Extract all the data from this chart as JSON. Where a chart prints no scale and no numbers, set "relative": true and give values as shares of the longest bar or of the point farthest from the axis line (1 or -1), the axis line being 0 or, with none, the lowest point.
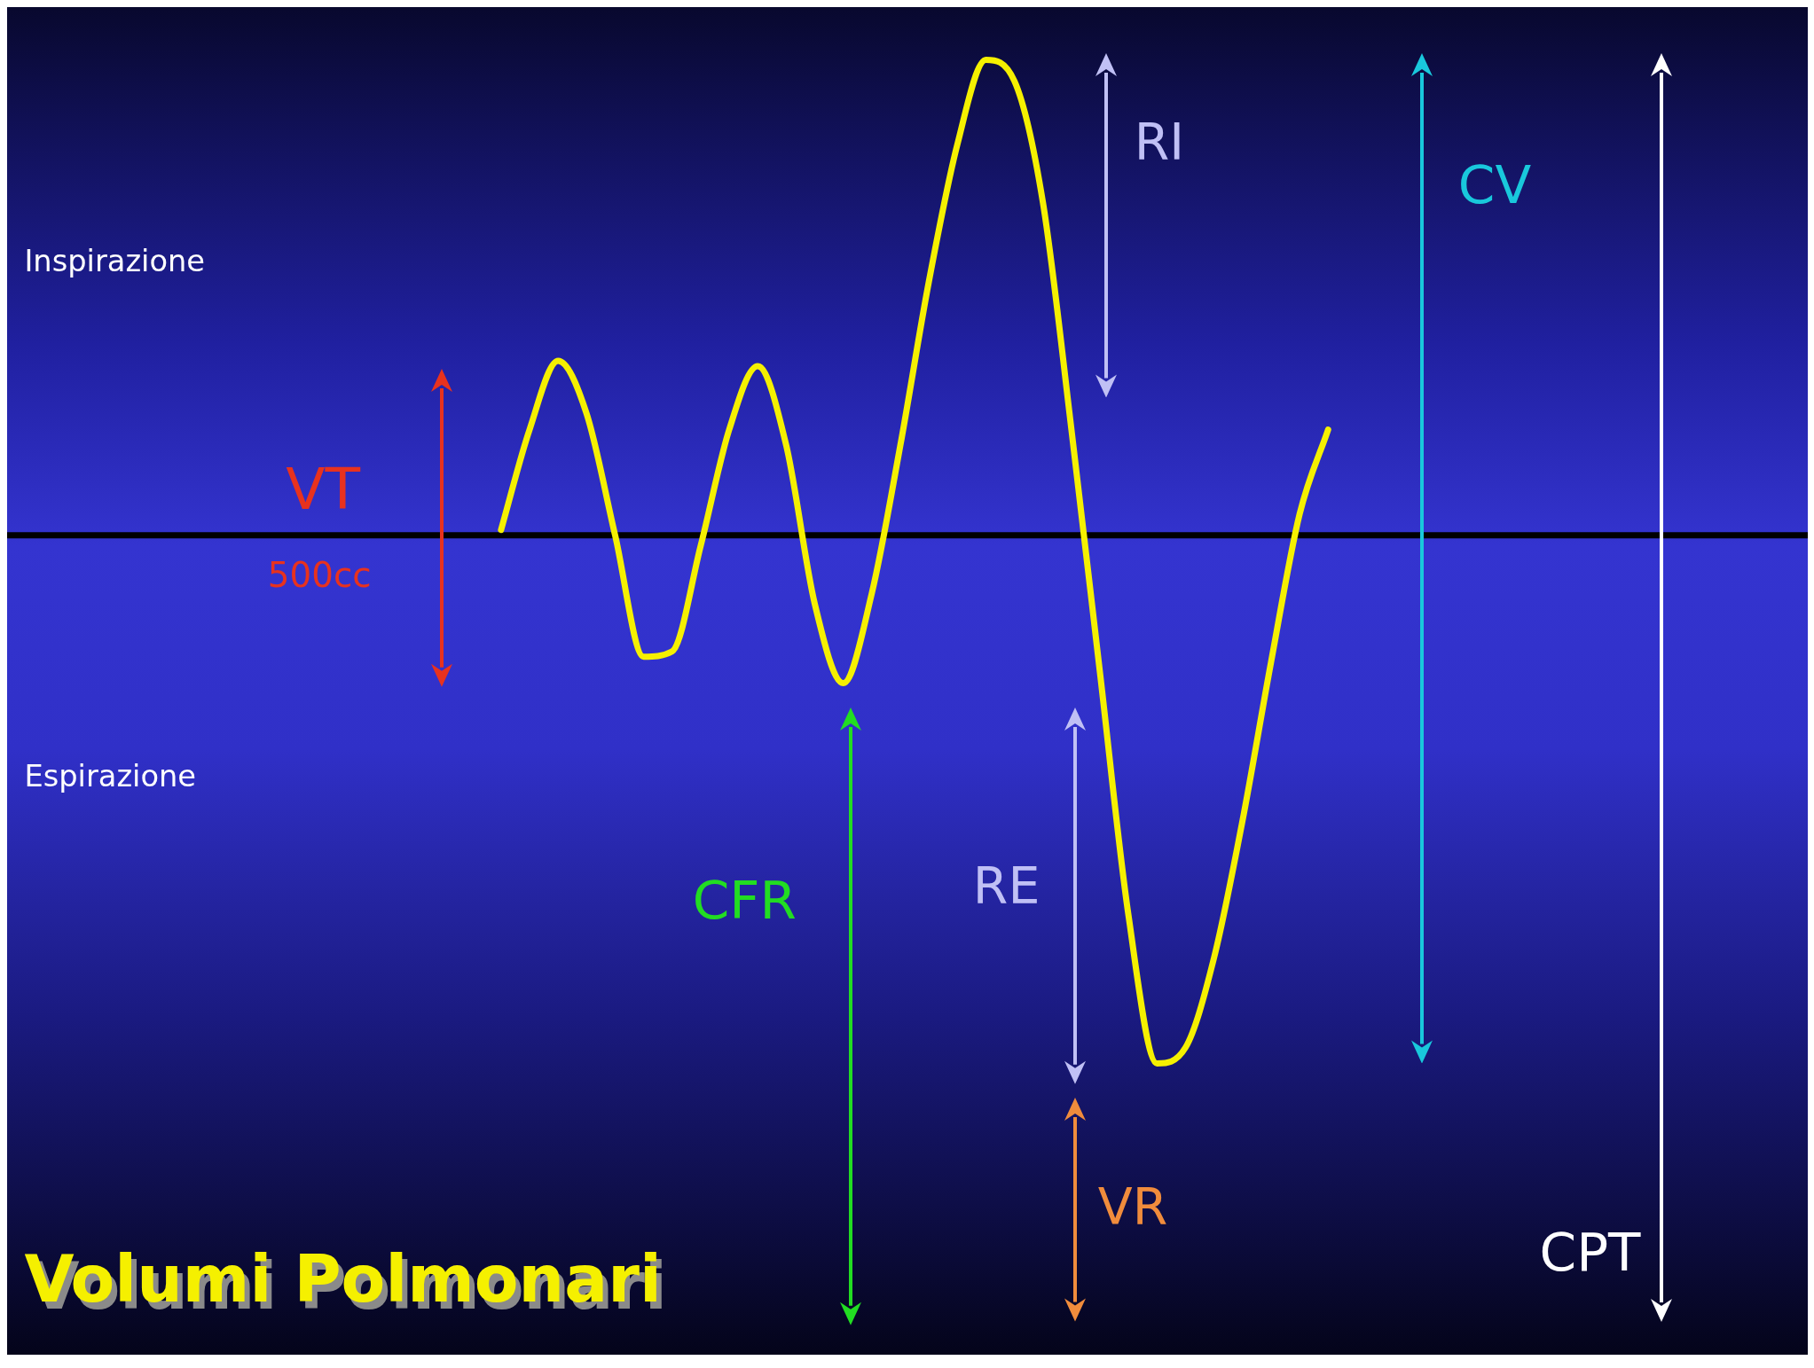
{
  "chart_data": {
    "type": "line",
    "title": "Volumi Polmonari",
    "relative": true,
    "legend": false,
    "categories": [
      null,
      null,
      null,
      null,
      null,
      null,
      null,
      null,
      null,
      null,
      null,
      null,
      null,
      null,
      null,
      null,
      null,
      null,
      null,
      null,
      null,
      null,
      null,
      null,
      null,
      null,
      null,
      null,
      null,
      null
    ],
    "series": [
      {
        "color": "#f5f000",
        "values": [
          0.01,
          0.2,
          0.33,
          0.23,
          0,
          -0.23,
          -0.22,
          -0.02,
          0.2,
          0.32,
          0.17,
          -0.13,
          -0.28,
          -0.11,
          0.17,
          0.48,
          0.74,
          0.9,
          0.86,
          0.63,
          0.2,
          -0.26,
          -0.72,
          -1,
          -0.97,
          -0.8,
          -0.54,
          -0.24,
          0.04,
          0.2
        ]
      }
    ],
    "annotations": [
      "Inspirazione",
      "Espirazione",
      "VT",
      "500cc",
      "RI",
      "CV",
      "CFR",
      "RE",
      "VR",
      "CPT"
    ]
  }
}
